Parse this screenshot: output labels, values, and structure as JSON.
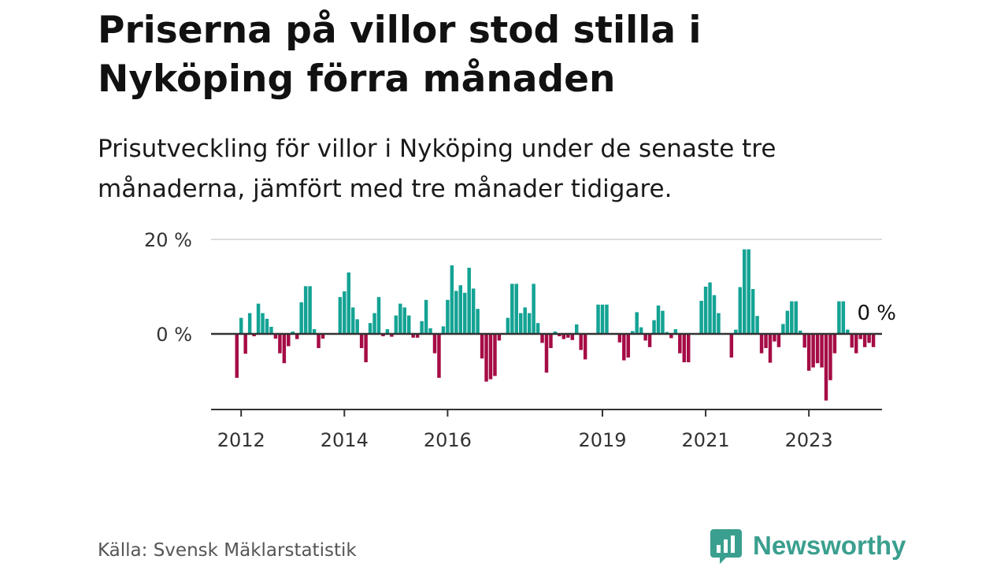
{
  "header": {
    "title": "Priserna på villor stod stilla i Nyköping förra månaden",
    "subtitle": "Prisutveckling för villor i Nyköping under de senaste tre månaderna, jämfört med tre månader tidigare."
  },
  "footer": {
    "source": "Källa: Svensk Mäklarstatistik",
    "brand": "Newsworthy"
  },
  "colors": {
    "positive": "#14a394",
    "negative": "#a50c46",
    "brand": "#3a9f8e"
  },
  "chart_data": {
    "type": "bar",
    "ylim": [
      -16,
      20
    ],
    "yticks": [
      {
        "value": 20,
        "label": "20 %"
      },
      {
        "value": 0,
        "label": "0 %"
      }
    ],
    "xlim": [
      "2011-06",
      "2024-06"
    ],
    "xticks": [
      {
        "value": "2012-01",
        "label": "2012"
      },
      {
        "value": "2014-01",
        "label": "2014"
      },
      {
        "value": "2016-01",
        "label": "2016"
      },
      {
        "value": "2019-01",
        "label": "2019"
      },
      {
        "value": "2021-01",
        "label": "2021"
      },
      {
        "value": "2023-01",
        "label": "2023"
      }
    ],
    "grid": true,
    "last_value_label": "0 %",
    "start_month": "2011-12",
    "values": [
      -9.3,
      3.4,
      -4.2,
      4.4,
      -0.5,
      6.4,
      4.4,
      3.2,
      1.5,
      -1.0,
      -4.1,
      -6.2,
      -2.6,
      0.5,
      -1.1,
      6.7,
      10.1,
      10.1,
      1.0,
      -3.0,
      -1.0,
      0,
      0,
      0,
      7.8,
      9.0,
      13.0,
      5.6,
      3.1,
      -3.0,
      -6.0,
      2.3,
      4.4,
      7.8,
      -0.5,
      1.0,
      -0.6,
      3.9,
      6.4,
      5.6,
      3.9,
      -0.8,
      -0.8,
      2.7,
      7.2,
      1.2,
      -4.1,
      -9.3,
      1.6,
      7.2,
      14.5,
      9.1,
      10.3,
      8.7,
      14.0,
      9.6,
      5.3,
      -5.2,
      -10.1,
      -9.6,
      -8.9,
      -1.4,
      0,
      3.4,
      10.6,
      10.6,
      4.4,
      5.6,
      4.4,
      10.6,
      2.3,
      -1.9,
      -8.2,
      -3.0,
      0.5,
      -0.5,
      -1.1,
      -0.8,
      -1.3,
      2.0,
      -3.4,
      -5.4,
      0,
      0,
      6.2,
      6.2,
      6.2,
      0,
      0,
      -1.8,
      -5.6,
      -5.0,
      0.6,
      4.6,
      1.4,
      -1.4,
      -2.8,
      2.9,
      6.0,
      4.9,
      0.4,
      -0.9,
      1.0,
      -4.1,
      -6.0,
      -6.0,
      0,
      0,
      7.0,
      10.0,
      10.9,
      8.2,
      4.4,
      0,
      0,
      -5.0,
      0.9,
      9.9,
      17.9,
      17.9,
      9.5,
      3.8,
      -4.1,
      -3.0,
      -6.1,
      -1.6,
      -2.8,
      2.1,
      4.9,
      6.9,
      6.9,
      0.7,
      -2.9,
      -7.8,
      -7.1,
      -6.2,
      -7.1,
      -14.1,
      -9.8,
      -4.1,
      6.9,
      6.9,
      0.9,
      -2.9,
      -4.1,
      -1.1,
      -2.8,
      -1.9,
      -2.8,
      0
    ]
  }
}
